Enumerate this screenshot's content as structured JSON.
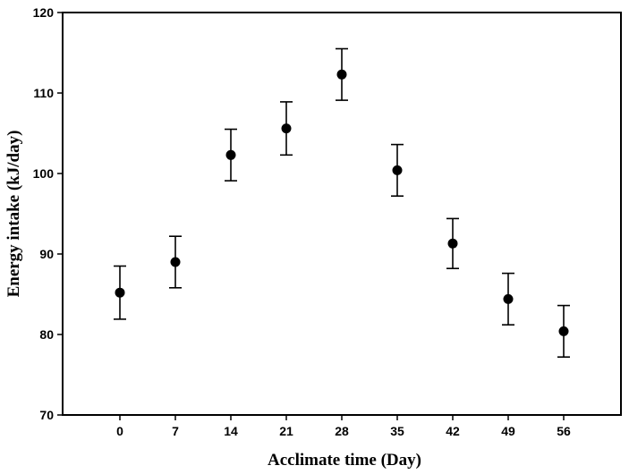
{
  "chart_data": {
    "type": "scatter",
    "title": "",
    "xlabel": "Acclimate time (Day)",
    "ylabel": "Energy intake (kJ/day)",
    "x": [
      0,
      7,
      14,
      21,
      28,
      35,
      42,
      49,
      56
    ],
    "x_tick_labels": [
      "0",
      "7",
      "14",
      "21",
      "28",
      "35",
      "42",
      "49",
      "56"
    ],
    "y_ticks": [
      70,
      80,
      90,
      100,
      110,
      120
    ],
    "y_tick_labels": [
      "70",
      "80",
      "90",
      "100",
      "110",
      "120"
    ],
    "ylim": [
      70,
      120
    ],
    "series": [
      {
        "values": [
          85.2,
          89.0,
          102.3,
          105.6,
          112.3,
          100.4,
          91.3,
          84.4,
          80.4
        ],
        "error": [
          3.3,
          3.2,
          3.2,
          3.3,
          3.2,
          3.2,
          3.1,
          3.2,
          3.2
        ]
      }
    ],
    "grid": false,
    "colors": {
      "marker": "#000000",
      "axis": "#000000"
    }
  }
}
